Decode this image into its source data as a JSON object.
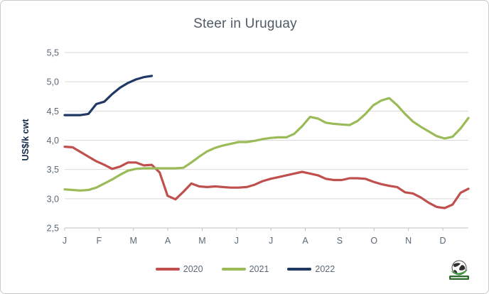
{
  "chart_data": {
    "type": "line",
    "title": "Steer in Uruguay",
    "ylabel": "US$/k cwt",
    "x_unit": "weekly points across one year",
    "x_axis": {
      "tick_labels": [
        "J",
        "F",
        "M",
        "A",
        "M",
        "J",
        "J",
        "A",
        "S",
        "O",
        "N",
        "D"
      ]
    },
    "y_axis": {
      "range": [
        2.5,
        5.5
      ],
      "ticks": [
        5.5,
        5.0,
        4.5,
        4.0,
        3.5,
        3.0,
        2.5
      ],
      "tick_labels": [
        "5,5",
        "5,0",
        "4,5",
        "4,0",
        "3,5",
        "3,0",
        "2,5"
      ]
    },
    "grid": true,
    "legend_position": "bottom",
    "series": [
      {
        "name": "2020",
        "color": "#c0504d",
        "values": [
          3.89,
          3.88,
          3.8,
          3.72,
          3.64,
          3.58,
          3.51,
          3.55,
          3.62,
          3.62,
          3.57,
          3.58,
          3.45,
          3.05,
          2.99,
          3.12,
          3.26,
          3.21,
          3.2,
          3.21,
          3.2,
          3.19,
          3.19,
          3.2,
          3.24,
          3.3,
          3.34,
          3.37,
          3.4,
          3.43,
          3.46,
          3.43,
          3.4,
          3.34,
          3.32,
          3.32,
          3.35,
          3.35,
          3.34,
          3.29,
          3.25,
          3.22,
          3.2,
          3.11,
          3.09,
          3.02,
          2.93,
          2.86,
          2.84,
          2.9,
          3.1,
          3.17
        ]
      },
      {
        "name": "2021",
        "color": "#9bbb59",
        "values": [
          3.16,
          3.15,
          3.14,
          3.15,
          3.19,
          3.26,
          3.33,
          3.41,
          3.48,
          3.51,
          3.52,
          3.52,
          3.52,
          3.52,
          3.52,
          3.53,
          3.62,
          3.72,
          3.81,
          3.87,
          3.91,
          3.94,
          3.97,
          3.97,
          3.99,
          4.02,
          4.04,
          4.05,
          4.05,
          4.11,
          4.24,
          4.4,
          4.37,
          4.3,
          4.28,
          4.27,
          4.26,
          4.33,
          4.45,
          4.6,
          4.68,
          4.72,
          4.6,
          4.45,
          4.32,
          4.23,
          4.15,
          4.07,
          4.03,
          4.06,
          4.2,
          4.38
        ]
      },
      {
        "name": "2022",
        "color": "#1f3864",
        "values": [
          4.43,
          4.43,
          4.43,
          4.45,
          4.62,
          4.66,
          4.79,
          4.9,
          4.98,
          5.04,
          5.08,
          5.1
        ]
      }
    ],
    "annotations": [
      "small globe logo with green banner at bottom right"
    ],
    "colors": {
      "gridline": "#d9d9d9",
      "axis_line": "#bfbfbf",
      "tick_text": "#5a6876",
      "title_text": "#4f5b66",
      "y_axis_title_text": "#15294b"
    }
  }
}
